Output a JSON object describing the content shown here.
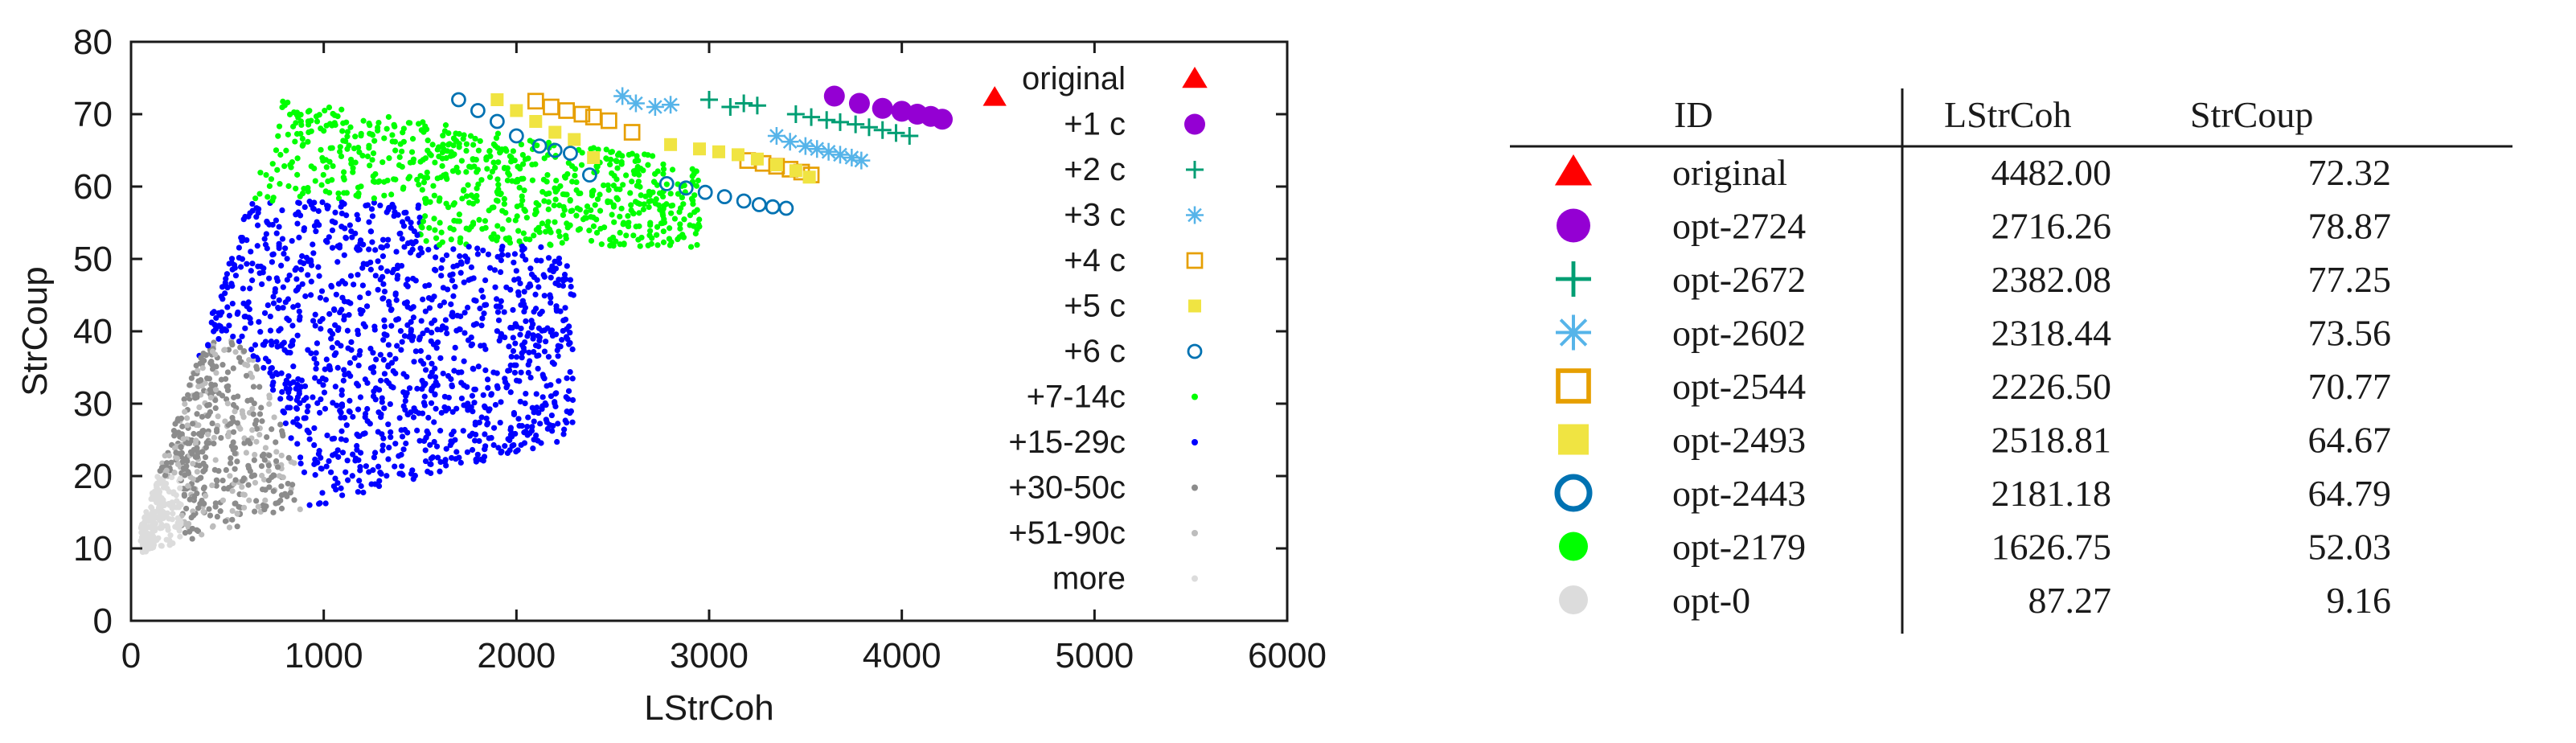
{
  "chart_data": {
    "type": "scatter",
    "xlabel": "LStrCoh",
    "ylabel": "StrCoup",
    "xlim": [
      0,
      6000
    ],
    "ylim": [
      0,
      80
    ],
    "x_ticks": [
      "0",
      "1000",
      "2000",
      "3000",
      "4000",
      "5000",
      "6000"
    ],
    "y_ticks": [
      "0",
      "10",
      "20",
      "30",
      "40",
      "50",
      "60",
      "70",
      "80"
    ],
    "grid": false,
    "legend_position": "right inside plot",
    "series": [
      {
        "name": "original",
        "marker": "triangle",
        "color": "#ff0000",
        "points": [
          [
            4482.0,
            72.32
          ]
        ]
      },
      {
        "name": "+1 c",
        "marker": "filled-circle",
        "color": "#9400d3",
        "points": [
          [
            3650,
            72.5
          ],
          [
            3780,
            71.5
          ],
          [
            3900,
            70.8
          ],
          [
            4000,
            70.4
          ],
          [
            4080,
            70.0
          ],
          [
            4150,
            69.7
          ],
          [
            4210,
            69.3
          ]
        ]
      },
      {
        "name": "+2 c",
        "marker": "plus",
        "color": "#009e73",
        "points": [
          [
            3000,
            72.0
          ],
          [
            3110,
            71.0
          ],
          [
            3180,
            71.5
          ],
          [
            3250,
            71.2
          ],
          [
            3450,
            70.0
          ],
          [
            3530,
            69.6
          ],
          [
            3610,
            69.2
          ],
          [
            3680,
            68.9
          ],
          [
            3760,
            68.6
          ],
          [
            3830,
            68.2
          ],
          [
            3900,
            67.8
          ],
          [
            3970,
            67.4
          ],
          [
            4040,
            67.0
          ]
        ]
      },
      {
        "name": "+3 c",
        "marker": "asterisk",
        "color": "#56b4e9",
        "points": [
          [
            2550,
            72.5
          ],
          [
            2620,
            71.5
          ],
          [
            2720,
            71.0
          ],
          [
            2800,
            71.3
          ],
          [
            3350,
            67.0
          ],
          [
            3420,
            66.2
          ],
          [
            3500,
            65.6
          ],
          [
            3560,
            65.2
          ],
          [
            3620,
            64.8
          ],
          [
            3680,
            64.4
          ],
          [
            3740,
            64.0
          ],
          [
            3790,
            63.6
          ]
        ]
      },
      {
        "name": "+4 c",
        "marker": "open-square",
        "color": "#e69f00",
        "points": [
          [
            2100,
            71.8
          ],
          [
            2180,
            71.0
          ],
          [
            2260,
            70.5
          ],
          [
            2340,
            70.0
          ],
          [
            2400,
            69.6
          ],
          [
            2480,
            69.1
          ],
          [
            2600,
            67.5
          ],
          [
            3200,
            63.6
          ],
          [
            3280,
            63.2
          ],
          [
            3350,
            62.8
          ],
          [
            3420,
            62.4
          ],
          [
            3480,
            62.0
          ],
          [
            3530,
            61.6
          ]
        ]
      },
      {
        "name": "+5 c",
        "marker": "filled-square",
        "color": "#f0e442",
        "points": [
          [
            1900,
            72.0
          ],
          [
            2000,
            70.5
          ],
          [
            2100,
            69.0
          ],
          [
            2200,
            67.5
          ],
          [
            2300,
            66.5
          ],
          [
            2400,
            64.0
          ],
          [
            2800,
            65.8
          ],
          [
            2950,
            65.2
          ],
          [
            3050,
            64.8
          ],
          [
            3150,
            64.4
          ],
          [
            3250,
            63.8
          ],
          [
            3350,
            63.0
          ],
          [
            3450,
            62.2
          ],
          [
            3520,
            61.3
          ]
        ]
      },
      {
        "name": "+6 c",
        "marker": "open-circle",
        "color": "#0072b2",
        "points": [
          [
            1700,
            72.0
          ],
          [
            1800,
            70.5
          ],
          [
            1900,
            69.0
          ],
          [
            2000,
            67.0
          ],
          [
            2120,
            65.6
          ],
          [
            2200,
            65.0
          ],
          [
            2280,
            64.6
          ],
          [
            2380,
            61.6
          ],
          [
            2780,
            60.4
          ],
          [
            2880,
            59.8
          ],
          [
            2980,
            59.2
          ],
          [
            3080,
            58.6
          ],
          [
            3180,
            58.0
          ],
          [
            3260,
            57.5
          ],
          [
            3330,
            57.2
          ],
          [
            3400,
            57.0
          ]
        ]
      },
      {
        "name": "+7-14c",
        "marker": "small-dot",
        "color": "#00ff00",
        "points": []
      },
      {
        "name": "+15-29c",
        "marker": "small-dot",
        "color": "#0000ff",
        "points": []
      },
      {
        "name": "+30-50c",
        "marker": "small-dot",
        "color": "#8c8c8c",
        "points": []
      },
      {
        "name": "+51-90c",
        "marker": "small-dot",
        "color": "#bdbdbd",
        "points": []
      },
      {
        "name": "more",
        "marker": "small-dot",
        "color": "#dcdcdc",
        "points": []
      }
    ]
  },
  "table": {
    "headers": [
      "ID",
      "LStrCoh",
      "StrCoup"
    ],
    "rows": [
      {
        "marker": "triangle",
        "color": "#ff0000",
        "id": "original",
        "lstrcoh": "4482.00",
        "strcoup": "72.32"
      },
      {
        "marker": "filled-circle",
        "color": "#9400d3",
        "id": "opt-2724",
        "lstrcoh": "2716.26",
        "strcoup": "78.87"
      },
      {
        "marker": "plus",
        "color": "#009e73",
        "id": "opt-2672",
        "lstrcoh": "2382.08",
        "strcoup": "77.25"
      },
      {
        "marker": "asterisk",
        "color": "#56b4e9",
        "id": "opt-2602",
        "lstrcoh": "2318.44",
        "strcoup": "73.56"
      },
      {
        "marker": "open-square",
        "color": "#e69f00",
        "id": "opt-2544",
        "lstrcoh": "2226.50",
        "strcoup": "70.77"
      },
      {
        "marker": "filled-square",
        "color": "#f0e442",
        "id": "opt-2493",
        "lstrcoh": "2518.81",
        "strcoup": "64.67"
      },
      {
        "marker": "open-circle",
        "color": "#0072b2",
        "id": "opt-2443",
        "lstrcoh": "2181.18",
        "strcoup": "64.79"
      },
      {
        "marker": "filled-circle",
        "color": "#00ff00",
        "id": "opt-2179",
        "lstrcoh": "1626.75",
        "strcoup": "52.03"
      },
      {
        "marker": "filled-circle",
        "color": "#dcdcdc",
        "id": "opt-0",
        "lstrcoh": "87.27",
        "strcoup": "9.16"
      }
    ]
  }
}
